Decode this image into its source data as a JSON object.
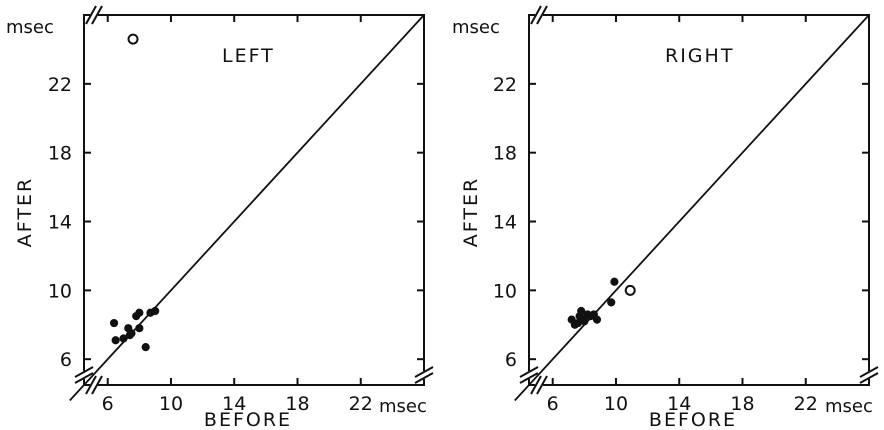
{
  "chart_data": [
    {
      "type": "scatter",
      "title": "LEFT",
      "xlabel": "BEFORE",
      "ylabel": "AFTER",
      "x_unit_label": "msec",
      "y_unit_label": "msec",
      "xlim": [
        4.5,
        26
      ],
      "ylim": [
        4.5,
        26
      ],
      "x_ticks": [
        6,
        10,
        14,
        18,
        22
      ],
      "y_ticks": [
        6,
        10,
        14,
        18,
        22
      ],
      "x_tick_labels": [
        "6",
        "10",
        "14",
        "18",
        "22"
      ],
      "y_tick_labels": [
        "6",
        "10",
        "14",
        "18",
        "22"
      ],
      "x_axis_break": true,
      "y_axis_break": true,
      "grid": false,
      "reference_line": "identity",
      "series": [
        {
          "marker": "filled-circle",
          "points": [
            [
              6.4,
              8.1
            ],
            [
              6.5,
              7.1
            ],
            [
              7.0,
              7.2
            ],
            [
              7.3,
              7.8
            ],
            [
              7.4,
              7.4
            ],
            [
              7.5,
              7.5
            ],
            [
              7.8,
              8.5
            ],
            [
              8.0,
              7.8
            ],
            [
              8.0,
              8.7
            ],
            [
              8.4,
              6.7
            ],
            [
              8.7,
              8.7
            ],
            [
              9.0,
              8.8
            ]
          ]
        },
        {
          "marker": "open-circle",
          "points": [
            [
              7.6,
              24.6
            ]
          ]
        }
      ]
    },
    {
      "type": "scatter",
      "title": "RIGHT",
      "xlabel": "BEFORE",
      "ylabel": "AFTER",
      "x_unit_label": "msec",
      "y_unit_label": "msec",
      "xlim": [
        4.5,
        26
      ],
      "ylim": [
        4.5,
        26
      ],
      "x_ticks": [
        6,
        10,
        14,
        18,
        22
      ],
      "y_ticks": [
        6,
        10,
        14,
        18,
        22
      ],
      "x_tick_labels": [
        "6",
        "10",
        "14",
        "18",
        "22"
      ],
      "y_tick_labels": [
        "6",
        "10",
        "14",
        "18",
        "22"
      ],
      "x_axis_break": true,
      "y_axis_break": true,
      "grid": false,
      "reference_line": "identity",
      "series": [
        {
          "marker": "filled-circle",
          "points": [
            [
              7.2,
              8.3
            ],
            [
              7.4,
              8.0
            ],
            [
              7.6,
              8.1
            ],
            [
              7.7,
              8.5
            ],
            [
              7.8,
              8.8
            ],
            [
              7.9,
              8.3
            ],
            [
              8.0,
              8.2
            ],
            [
              8.2,
              8.6
            ],
            [
              8.4,
              8.5
            ],
            [
              8.6,
              8.6
            ],
            [
              8.8,
              8.3
            ],
            [
              9.7,
              9.3
            ],
            [
              9.9,
              10.5
            ]
          ]
        },
        {
          "marker": "open-circle",
          "points": [
            [
              10.9,
              10.0
            ]
          ]
        }
      ]
    }
  ]
}
